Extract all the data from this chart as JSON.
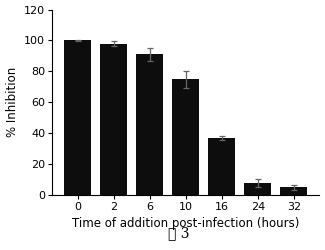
{
  "categories": [
    0,
    2,
    6,
    10,
    16,
    24,
    32
  ],
  "tick_labels": [
    "0",
    "2",
    "6",
    "10",
    "16",
    "24",
    "32"
  ],
  "values": [
    100,
    98,
    91,
    75,
    37,
    8,
    5
  ],
  "errors": [
    0.5,
    1.5,
    4.0,
    5.5,
    1.5,
    2.5,
    1.5
  ],
  "bar_color": "#0d0d0d",
  "bar_width": 0.75,
  "xlabel": "Time of addition post-infection (hours)",
  "ylabel": "% Inhibition",
  "ylim": [
    0,
    120
  ],
  "yticks": [
    0,
    20,
    40,
    60,
    80,
    100,
    120
  ],
  "xlabel_fontsize": 8.5,
  "ylabel_fontsize": 8.5,
  "tick_fontsize": 8.0,
  "caption": "图 3",
  "caption_fontsize": 10,
  "error_capsize": 2.5,
  "error_color": "#666666",
  "error_linewidth": 0.9
}
